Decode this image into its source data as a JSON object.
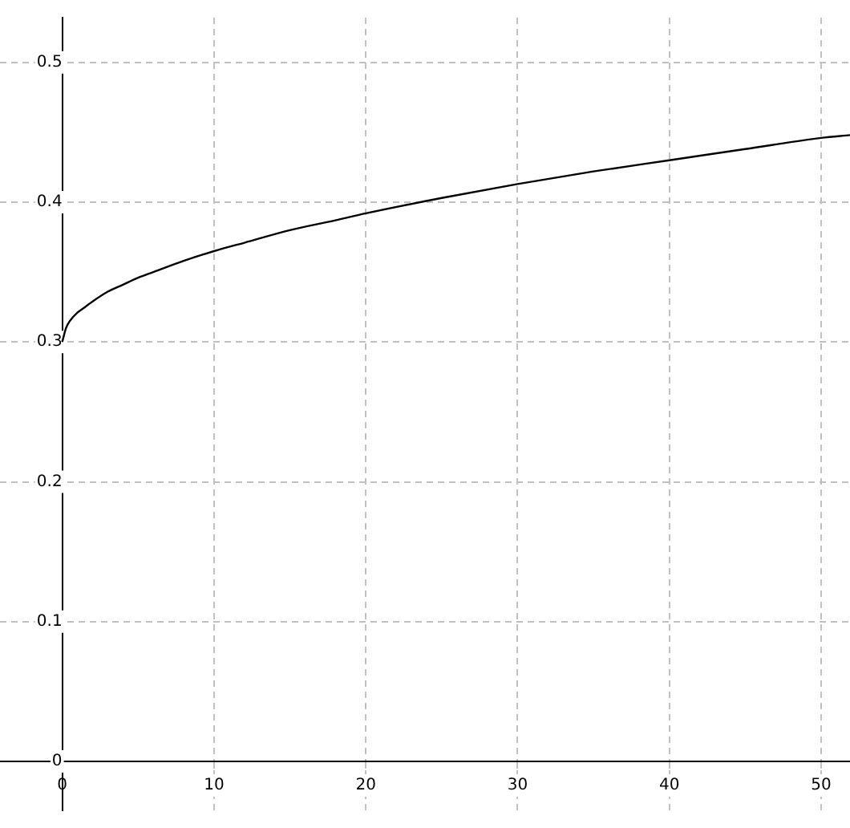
{
  "chart_data": {
    "type": "line",
    "x": [
      0,
      0.25,
      0.5,
      1,
      1.5,
      2,
      3,
      4,
      5,
      6,
      8,
      10,
      12,
      15,
      18,
      20,
      25,
      30,
      35,
      40,
      45,
      50,
      51.9
    ],
    "series": [
      {
        "color": "#000000",
        "values": [
          0.3,
          0.31,
          0.315,
          0.321,
          0.325,
          0.329,
          0.336,
          0.341,
          0.346,
          0.35,
          0.358,
          0.365,
          0.371,
          0.38,
          0.387,
          0.392,
          0.403,
          0.413,
          0.422,
          0.43,
          0.438,
          0.446,
          0.448
        ]
      }
    ],
    "xlim": [
      -4.1,
      51.9
    ],
    "ylim": [
      -0.035,
      0.532
    ],
    "xticks": [
      0,
      10,
      20,
      30,
      40,
      50
    ],
    "yticks": [
      0,
      0.1,
      0.2,
      0.3,
      0.4,
      0.5
    ],
    "grid": true,
    "line_style": "solid",
    "marker": "none"
  }
}
